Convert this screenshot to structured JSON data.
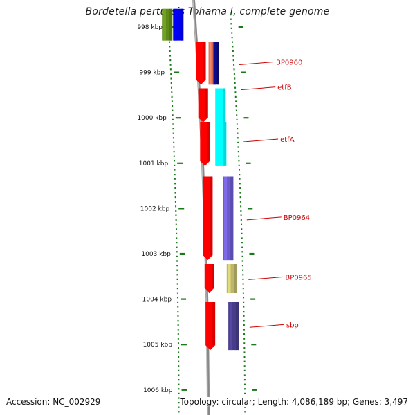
{
  "title": "Bordetella pertussis Tohama I, complete genome",
  "footer": {
    "accession": "Accession: NC_002929",
    "topology": "Topology: circular; Length: 4,086,189 bp; Genes: 3,497"
  },
  "scale": {
    "unit": "kbp",
    "ticks": [
      {
        "kbp": 998,
        "label": "998 kbp"
      },
      {
        "kbp": 999,
        "label": "999 kbp"
      },
      {
        "kbp": 1000,
        "label": "1000 kbp"
      },
      {
        "kbp": 1001,
        "label": "1001 kbp"
      },
      {
        "kbp": 1002,
        "label": "1002 kbp"
      },
      {
        "kbp": 1003,
        "label": "1003 kbp"
      },
      {
        "kbp": 1004,
        "label": "1004 kbp"
      },
      {
        "kbp": 1005,
        "label": "1005 kbp"
      },
      {
        "kbp": 1006,
        "label": "1006 kbp"
      }
    ]
  },
  "genes": [
    {
      "name": "",
      "start": 997.6,
      "end": 998.3,
      "color": "#5e8a1a"
    },
    {
      "name": "",
      "start": 997.6,
      "end": 998.3,
      "color": "#0000ee"
    },
    {
      "name": "",
      "start": 998.33,
      "end": 999.27,
      "color": "#ff0000"
    },
    {
      "name": "",
      "start": 998.33,
      "end": 999.27,
      "color": "#e8735a"
    },
    {
      "name": "BP0960",
      "start": 998.33,
      "end": 999.27,
      "color": "#0b0b7a"
    },
    {
      "name": "",
      "start": 999.35,
      "end": 1000.1,
      "color": "#ff0000"
    },
    {
      "name": "etfB",
      "start": 999.35,
      "end": 1001.06,
      "color": "#00ffff"
    },
    {
      "name": "",
      "start": 1000.1,
      "end": 1001.06,
      "color": "#ff0000"
    },
    {
      "name": "etfA",
      "start": 1000.1,
      "end": 1001.06,
      "color": "#00ffff"
    },
    {
      "name": "",
      "start": 1001.3,
      "end": 1003.14,
      "color": "#ff0000"
    },
    {
      "name": "BP0964",
      "start": 1001.3,
      "end": 1003.14,
      "color": "#6a5acd"
    },
    {
      "name": "",
      "start": 1003.22,
      "end": 1003.86,
      "color": "#ff0000"
    },
    {
      "name": "BP0965",
      "start": 1003.22,
      "end": 1003.86,
      "color": "#bdb76b"
    },
    {
      "name": "",
      "start": 1004.06,
      "end": 1005.12,
      "color": "#ff0000"
    },
    {
      "name": "sbp",
      "start": 1004.06,
      "end": 1005.12,
      "color": "#483d8b"
    }
  ]
}
